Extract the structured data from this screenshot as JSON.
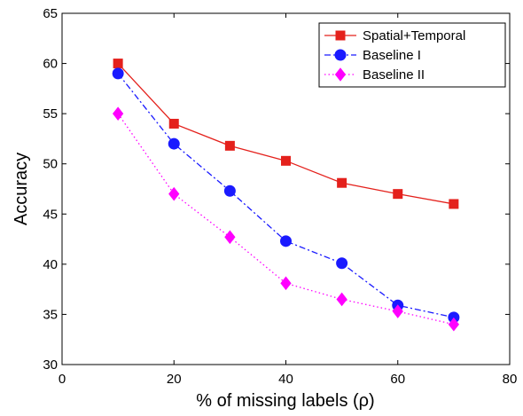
{
  "chart_data": {
    "type": "line",
    "xlabel": "% of missing labels (ρ)",
    "ylabel": "Accuracy",
    "xlim": [
      0,
      80
    ],
    "ylim": [
      30,
      65
    ],
    "xticks": [
      "0",
      "20",
      "40",
      "60",
      "80"
    ],
    "yticks": [
      "30",
      "35",
      "40",
      "45",
      "50",
      "55",
      "60",
      "65"
    ],
    "x": [
      10,
      20,
      30,
      40,
      50,
      60,
      70
    ],
    "grid": false,
    "legend_position": "top-right",
    "series": [
      {
        "name": "Spatial+Temporal",
        "values": [
          60,
          54,
          51.8,
          50.3,
          48.1,
          47,
          46
        ],
        "color": "#e4211c",
        "line": "solid",
        "marker": "square"
      },
      {
        "name": "Baseline I",
        "values": [
          59,
          52,
          47.3,
          42.3,
          40.1,
          35.9,
          34.7
        ],
        "color": "#1a1aff",
        "line": "dashdot",
        "marker": "circle"
      },
      {
        "name": "Baseline II",
        "values": [
          55,
          47,
          42.7,
          38.1,
          36.5,
          35.3,
          34
        ],
        "color": "#ff00ff",
        "line": "dotted",
        "marker": "diamond"
      }
    ]
  }
}
